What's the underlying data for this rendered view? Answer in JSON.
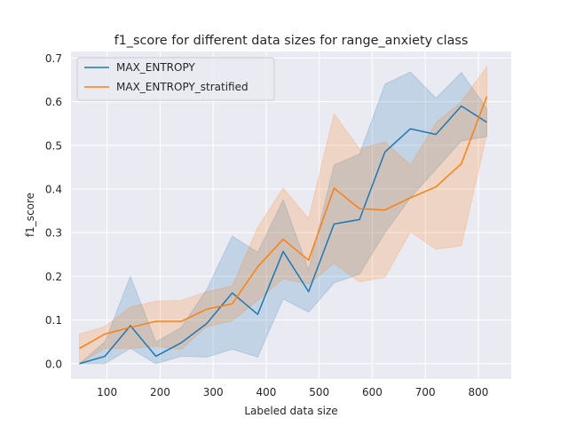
{
  "chart_data": {
    "type": "line",
    "title": "f1_score for different data sizes for range_anxiety class",
    "xlabel": "Labeled data size",
    "ylabel": "f1_score",
    "xlim": [
      32,
      862
    ],
    "ylim": [
      -0.035,
      0.715
    ],
    "xticks": [
      100,
      200,
      300,
      400,
      500,
      600,
      700,
      800
    ],
    "yticks": [
      0.0,
      0.1,
      0.2,
      0.3,
      0.4,
      0.5,
      0.6,
      0.7
    ],
    "ytick_labels": [
      "0.0",
      "0.1",
      "0.2",
      "0.3",
      "0.4",
      "0.5",
      "0.6",
      "0.7"
    ],
    "x": [
      48,
      96,
      144,
      192,
      240,
      288,
      336,
      384,
      432,
      480,
      528,
      576,
      624,
      672,
      720,
      768,
      816
    ],
    "grid": true,
    "legend_position": "upper-left",
    "background": "#eaeaf2",
    "series": [
      {
        "name": "MAX_ENTROPY",
        "color": "#1f77b4",
        "values": [
          0.0,
          0.017,
          0.087,
          0.017,
          0.048,
          0.092,
          0.162,
          0.113,
          0.257,
          0.165,
          0.32,
          0.33,
          0.485,
          0.538,
          0.525,
          0.59,
          0.553
        ],
        "lower": [
          0.0,
          0.0,
          0.035,
          0.0,
          0.017,
          0.015,
          0.033,
          0.015,
          0.148,
          0.118,
          0.185,
          0.205,
          0.3,
          0.38,
          0.445,
          0.51,
          0.52
        ],
        "upper": [
          0.0,
          0.05,
          0.2,
          0.05,
          0.083,
          0.17,
          0.292,
          0.255,
          0.375,
          0.215,
          0.455,
          0.48,
          0.64,
          0.668,
          0.608,
          0.667,
          0.585
        ]
      },
      {
        "name": "MAX_ENTROPY_stratified",
        "color": "#ff7f0e",
        "values": [
          0.035,
          0.068,
          0.083,
          0.097,
          0.097,
          0.125,
          0.137,
          0.222,
          0.285,
          0.237,
          0.402,
          0.355,
          0.352,
          0.38,
          0.405,
          0.458,
          0.612
        ],
        "lower": [
          0.0,
          0.035,
          0.035,
          0.04,
          0.033,
          0.085,
          0.098,
          0.145,
          0.195,
          0.182,
          0.23,
          0.187,
          0.198,
          0.302,
          0.262,
          0.27,
          0.525
        ],
        "upper": [
          0.068,
          0.085,
          0.13,
          0.143,
          0.145,
          0.165,
          0.178,
          0.312,
          0.402,
          0.332,
          0.572,
          0.492,
          0.508,
          0.455,
          0.552,
          0.6,
          0.68
        ]
      }
    ]
  }
}
